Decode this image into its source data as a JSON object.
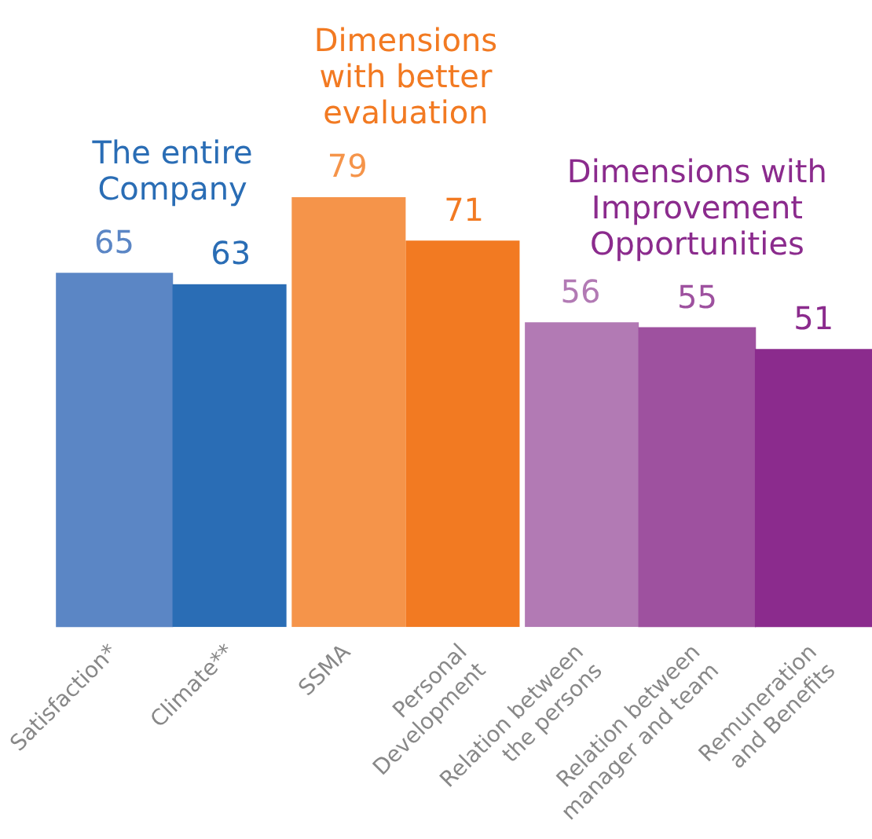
{
  "chart_data": {
    "type": "bar",
    "categories": [
      "Satisfaction*",
      "Climate**",
      "SSMA",
      "Personal Development",
      "Relation between the persons",
      "Relation between manager and team",
      "Remuneration and Benefits"
    ],
    "values": [
      65,
      63,
      79,
      71,
      56,
      55,
      51
    ],
    "colors": [
      "#5b86c5",
      "#2a6db5",
      "#f5944a",
      "#f27a22",
      "#b27ab4",
      "#9e519f",
      "#8b2b8d"
    ],
    "data_labels": true,
    "annotations": [
      "The entire\nCompany",
      "Dimensions\nwith better\nevaluation",
      "Dimensions with\nImprovement\nOpportunities"
    ],
    "grid": false,
    "legend": false
  }
}
